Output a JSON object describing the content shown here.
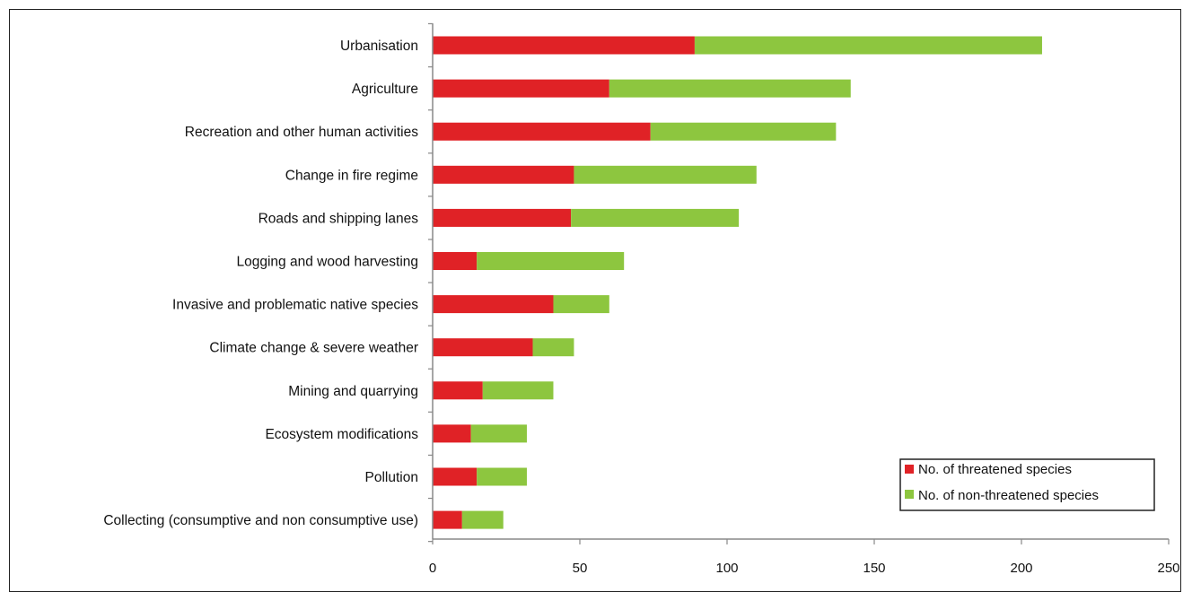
{
  "chart_data": {
    "type": "bar",
    "orientation": "horizontal",
    "stacked": true,
    "categories": [
      "Urbanisation",
      "Agriculture",
      "Recreation and other human activities",
      "Change in fire regime",
      "Roads and shipping lanes",
      "Logging and wood harvesting",
      "Invasive and problematic native species",
      "Climate change & severe weather",
      "Mining and quarrying",
      "Ecosystem modifications",
      "Pollution",
      "Collecting (consumptive and non consumptive use)"
    ],
    "series": [
      {
        "name": "No. of threatened species",
        "color": "#e02226",
        "values": [
          89,
          60,
          74,
          48,
          47,
          15,
          41,
          34,
          17,
          13,
          15,
          10
        ]
      },
      {
        "name": "No. of non-threatened species",
        "color": "#8dc63f",
        "values": [
          118,
          82,
          63,
          62,
          57,
          50,
          19,
          14,
          24,
          19,
          17,
          14
        ]
      }
    ],
    "xlim": [
      0,
      250
    ],
    "xticks": [
      "0",
      "50",
      "100",
      "150",
      "200",
      "250"
    ],
    "grid": false,
    "legend_position": "bottom-right"
  }
}
